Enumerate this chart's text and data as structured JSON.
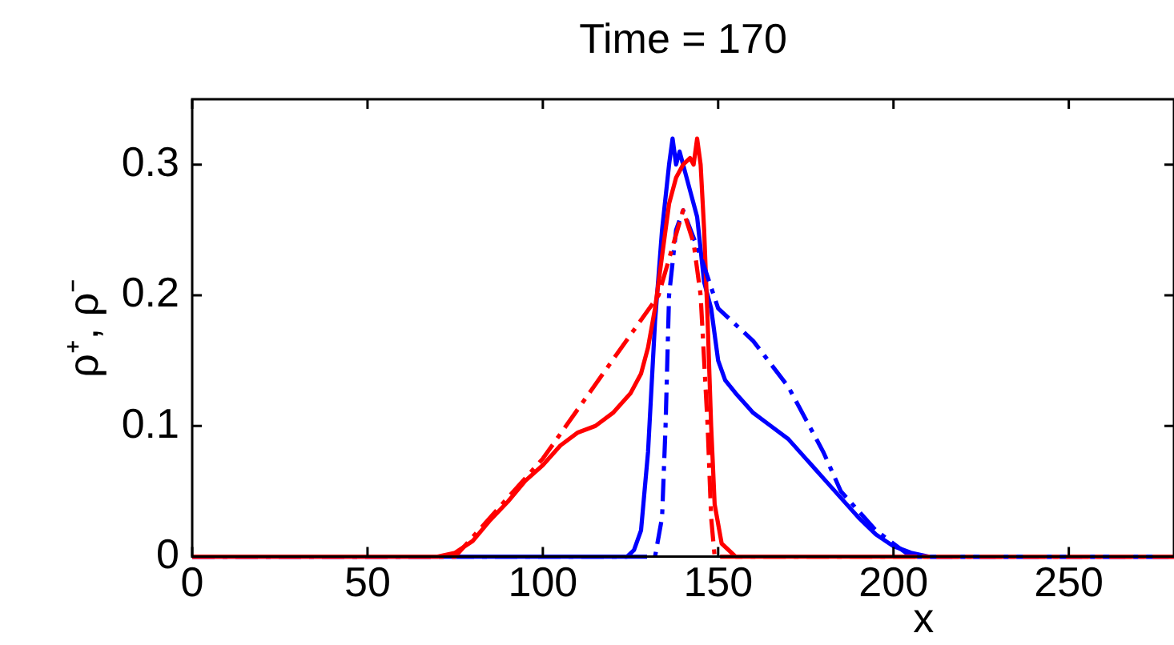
{
  "chart_data": {
    "type": "line",
    "title": "Time = 170",
    "xlabel": "x",
    "ylabel": "ρ⁺, ρ⁻",
    "xlim": [
      0,
      280
    ],
    "xticks": [
      0,
      50,
      100,
      150,
      200,
      250
    ],
    "ylim": [
      0,
      0.35
    ],
    "yticks": [
      0,
      0.1,
      0.2,
      0.3
    ],
    "grid": false,
    "legend": false,
    "marker": "none",
    "series": [
      {
        "color": "#ff0000",
        "line_style": "dashed_dot",
        "x": [
          0,
          75,
          100,
          133,
          140,
          143,
          145,
          147,
          148,
          149,
          280
        ],
        "values": [
          0,
          0,
          0.075,
          0.2,
          0.265,
          0.24,
          0.2,
          0.1,
          0.03,
          0,
          0
        ]
      },
      {
        "color": "#0000ff",
        "line_style": "dashed_dot",
        "x": [
          0,
          132,
          134,
          135,
          136,
          138,
          140,
          145,
          150,
          160,
          170,
          180,
          185,
          195,
          205,
          280
        ],
        "values": [
          0,
          0,
          0.03,
          0.1,
          0.2,
          0.25,
          0.265,
          0.23,
          0.19,
          0.165,
          0.13,
          0.08,
          0.05,
          0.02,
          0,
          0
        ]
      },
      {
        "color": "#ff0000",
        "line_style": "solid",
        "x": [
          0,
          70,
          75,
          80,
          85,
          90,
          95,
          100,
          105,
          110,
          115,
          120,
          125,
          128,
          130,
          132,
          134,
          136,
          138,
          140,
          142,
          143,
          144,
          145,
          146,
          147,
          148,
          149,
          151,
          155,
          280
        ],
        "values": [
          0,
          0,
          0.003,
          0.012,
          0.028,
          0.042,
          0.058,
          0.07,
          0.085,
          0.095,
          0.1,
          0.11,
          0.125,
          0.14,
          0.16,
          0.19,
          0.23,
          0.27,
          0.29,
          0.3,
          0.305,
          0.3,
          0.32,
          0.3,
          0.25,
          0.18,
          0.1,
          0.04,
          0.01,
          0,
          0
        ]
      },
      {
        "color": "#0000ff",
        "line_style": "solid",
        "x": [
          0,
          124,
          126,
          128,
          130,
          132,
          134,
          136,
          137,
          138,
          139,
          140,
          142,
          144,
          146,
          148,
          150,
          152,
          155,
          160,
          165,
          170,
          175,
          180,
          185,
          190,
          195,
          200,
          205,
          210,
          280
        ],
        "values": [
          0,
          0,
          0.005,
          0.02,
          0.08,
          0.18,
          0.25,
          0.3,
          0.32,
          0.3,
          0.31,
          0.3,
          0.28,
          0.26,
          0.21,
          0.19,
          0.15,
          0.135,
          0.125,
          0.11,
          0.1,
          0.09,
          0.075,
          0.06,
          0.045,
          0.03,
          0.017,
          0.008,
          0.003,
          0,
          0
        ]
      }
    ]
  }
}
